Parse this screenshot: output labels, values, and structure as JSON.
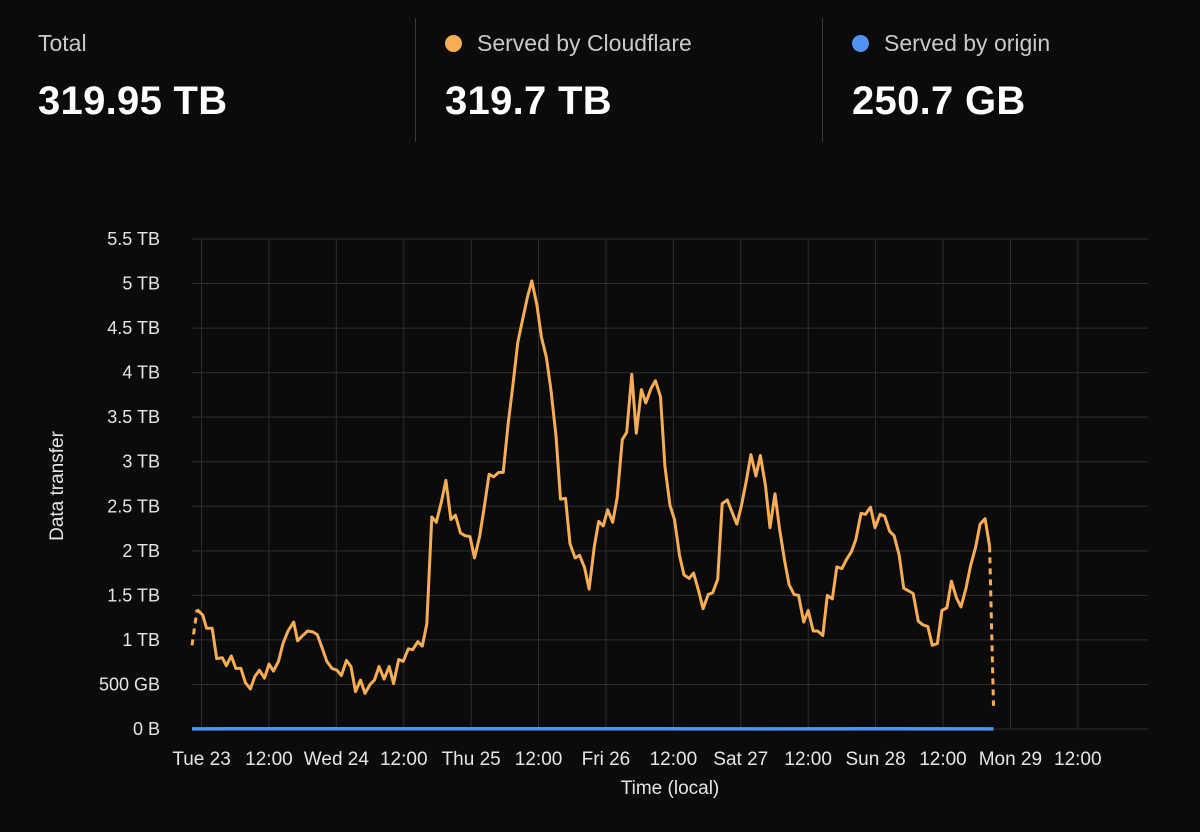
{
  "summary": {
    "total": {
      "label": "Total",
      "value": "319.95 TB"
    },
    "cloudflare": {
      "label": "Served by Cloudflare",
      "value": "319.7 TB",
      "color": "#f6ad55"
    },
    "origin": {
      "label": "Served by origin",
      "value": "250.7 GB",
      "color": "#4f93f5"
    }
  },
  "chart_data": {
    "type": "line",
    "xlabel": "Time (local)",
    "ylabel": "Data transfer",
    "ylim": [
      0,
      5.5
    ],
    "y_unit": "TB",
    "yticks": [
      {
        "value": 0,
        "label": "0 B"
      },
      {
        "value": 0.5,
        "label": "500 GB"
      },
      {
        "value": 1,
        "label": "1 TB"
      },
      {
        "value": 1.5,
        "label": "1.5 TB"
      },
      {
        "value": 2,
        "label": "2 TB"
      },
      {
        "value": 2.5,
        "label": "2.5 TB"
      },
      {
        "value": 3,
        "label": "3 TB"
      },
      {
        "value": 3.5,
        "label": "3.5 TB"
      },
      {
        "value": 4,
        "label": "4 TB"
      },
      {
        "value": 4.5,
        "label": "4.5 TB"
      },
      {
        "value": 5,
        "label": "5 TB"
      },
      {
        "value": 5.5,
        "label": "5.5 TB"
      }
    ],
    "x_hours_range": [
      -1.7,
      168.5
    ],
    "xticks": [
      {
        "hours": 0,
        "label": "Tue 23"
      },
      {
        "hours": 12,
        "label": "12:00"
      },
      {
        "hours": 24,
        "label": "Wed 24"
      },
      {
        "hours": 36,
        "label": "12:00"
      },
      {
        "hours": 48,
        "label": "Thu 25"
      },
      {
        "hours": 60,
        "label": "12:00"
      },
      {
        "hours": 72,
        "label": "Fri 26"
      },
      {
        "hours": 84,
        "label": "12:00"
      },
      {
        "hours": 96,
        "label": "Sat 27"
      },
      {
        "hours": 108,
        "label": "12:00"
      },
      {
        "hours": 120,
        "label": "Sun 28"
      },
      {
        "hours": 132,
        "label": "12:00"
      },
      {
        "hours": 144,
        "label": "Mon 29"
      },
      {
        "hours": 156,
        "label": "12:00"
      }
    ],
    "grid": true,
    "series": [
      {
        "name": "Served by Cloudflare",
        "color": "#f6ad55",
        "dashed_edges": true,
        "points": [
          [
            -1.7,
            0.94
          ],
          [
            -0.8,
            1.34
          ],
          [
            0.2,
            1.28
          ],
          [
            0.9,
            1.13
          ],
          [
            1.9,
            1.13
          ],
          [
            2.7,
            0.79
          ],
          [
            3.7,
            0.8
          ],
          [
            4.4,
            0.71
          ],
          [
            5.3,
            0.82
          ],
          [
            6.1,
            0.68
          ],
          [
            7.0,
            0.68
          ],
          [
            7.8,
            0.52
          ],
          [
            8.7,
            0.45
          ],
          [
            9.5,
            0.59
          ],
          [
            10.3,
            0.66
          ],
          [
            11.2,
            0.57
          ],
          [
            12.0,
            0.73
          ],
          [
            12.8,
            0.65
          ],
          [
            13.7,
            0.76
          ],
          [
            14.5,
            0.96
          ],
          [
            15.4,
            1.1
          ],
          [
            16.4,
            1.2
          ],
          [
            17.1,
            0.99
          ],
          [
            18.0,
            1.05
          ],
          [
            18.9,
            1.1
          ],
          [
            19.8,
            1.09
          ],
          [
            20.6,
            1.06
          ],
          [
            21.4,
            0.92
          ],
          [
            22.3,
            0.76
          ],
          [
            23.2,
            0.68
          ],
          [
            24.1,
            0.66
          ],
          [
            24.9,
            0.6
          ],
          [
            25.8,
            0.77
          ],
          [
            26.6,
            0.7
          ],
          [
            27.4,
            0.42
          ],
          [
            28.3,
            0.55
          ],
          [
            29.1,
            0.4
          ],
          [
            30.0,
            0.5
          ],
          [
            30.8,
            0.55
          ],
          [
            31.6,
            0.7
          ],
          [
            32.5,
            0.56
          ],
          [
            33.4,
            0.7
          ],
          [
            34.2,
            0.51
          ],
          [
            35.1,
            0.78
          ],
          [
            35.9,
            0.76
          ],
          [
            36.8,
            0.9
          ],
          [
            37.6,
            0.89
          ],
          [
            38.5,
            0.98
          ],
          [
            39.3,
            0.93
          ],
          [
            40.1,
            1.18
          ],
          [
            41.0,
            2.38
          ],
          [
            41.8,
            2.32
          ],
          [
            42.7,
            2.55
          ],
          [
            43.5,
            2.79
          ],
          [
            44.4,
            2.35
          ],
          [
            45.2,
            2.4
          ],
          [
            46.1,
            2.2
          ],
          [
            46.9,
            2.17
          ],
          [
            47.8,
            2.16
          ],
          [
            48.6,
            1.92
          ],
          [
            49.5,
            2.16
          ],
          [
            50.3,
            2.48
          ],
          [
            51.2,
            2.86
          ],
          [
            52.0,
            2.83
          ],
          [
            52.9,
            2.88
          ],
          [
            53.7,
            2.88
          ],
          [
            54.6,
            3.43
          ],
          [
            55.4,
            3.84
          ],
          [
            56.3,
            4.34
          ],
          [
            57.1,
            4.58
          ],
          [
            58.0,
            4.84
          ],
          [
            58.8,
            5.03
          ],
          [
            59.7,
            4.76
          ],
          [
            60.5,
            4.4
          ],
          [
            61.4,
            4.17
          ],
          [
            62.2,
            3.81
          ],
          [
            63.1,
            3.29
          ],
          [
            63.9,
            2.58
          ],
          [
            64.8,
            2.59
          ],
          [
            65.6,
            2.08
          ],
          [
            66.5,
            1.92
          ],
          [
            67.3,
            1.95
          ],
          [
            68.2,
            1.81
          ],
          [
            69.0,
            1.57
          ],
          [
            69.9,
            2.04
          ],
          [
            70.7,
            2.33
          ],
          [
            71.5,
            2.28
          ],
          [
            72.3,
            2.46
          ],
          [
            73.2,
            2.32
          ],
          [
            74.0,
            2.6
          ],
          [
            74.9,
            3.25
          ],
          [
            75.7,
            3.33
          ],
          [
            76.6,
            3.98
          ],
          [
            77.4,
            3.32
          ],
          [
            78.3,
            3.81
          ],
          [
            79.1,
            3.66
          ],
          [
            80.0,
            3.82
          ],
          [
            80.8,
            3.91
          ],
          [
            81.7,
            3.73
          ],
          [
            82.5,
            2.95
          ],
          [
            83.4,
            2.51
          ],
          [
            84.2,
            2.35
          ],
          [
            85.1,
            1.95
          ],
          [
            85.9,
            1.73
          ],
          [
            86.8,
            1.69
          ],
          [
            87.6,
            1.75
          ],
          [
            88.5,
            1.55
          ],
          [
            89.3,
            1.35
          ],
          [
            90.2,
            1.51
          ],
          [
            91.0,
            1.53
          ],
          [
            91.9,
            1.68
          ],
          [
            92.7,
            2.53
          ],
          [
            93.6,
            2.57
          ],
          [
            94.4,
            2.44
          ],
          [
            95.3,
            2.3
          ],
          [
            96.1,
            2.5
          ],
          [
            97.0,
            2.79
          ],
          [
            97.8,
            3.08
          ],
          [
            98.7,
            2.84
          ],
          [
            99.5,
            3.07
          ],
          [
            100.4,
            2.73
          ],
          [
            101.2,
            2.26
          ],
          [
            102.1,
            2.64
          ],
          [
            102.9,
            2.25
          ],
          [
            103.8,
            1.89
          ],
          [
            104.6,
            1.62
          ],
          [
            105.5,
            1.51
          ],
          [
            106.3,
            1.5
          ],
          [
            107.2,
            1.2
          ],
          [
            108.0,
            1.33
          ],
          [
            108.9,
            1.1
          ],
          [
            109.7,
            1.1
          ],
          [
            110.6,
            1.05
          ],
          [
            111.4,
            1.5
          ],
          [
            112.3,
            1.46
          ],
          [
            113.1,
            1.82
          ],
          [
            114.0,
            1.8
          ],
          [
            114.8,
            1.9
          ],
          [
            115.7,
            1.99
          ],
          [
            116.5,
            2.13
          ],
          [
            117.4,
            2.42
          ],
          [
            118.2,
            2.41
          ],
          [
            119.1,
            2.49
          ],
          [
            119.9,
            2.26
          ],
          [
            120.8,
            2.41
          ],
          [
            121.6,
            2.39
          ],
          [
            122.5,
            2.22
          ],
          [
            123.3,
            2.17
          ],
          [
            124.2,
            1.95
          ],
          [
            125.0,
            1.58
          ],
          [
            125.9,
            1.55
          ],
          [
            126.7,
            1.52
          ],
          [
            127.6,
            1.21
          ],
          [
            128.4,
            1.17
          ],
          [
            129.3,
            1.15
          ],
          [
            130.1,
            0.94
          ],
          [
            131.0,
            0.96
          ],
          [
            131.8,
            1.33
          ],
          [
            132.7,
            1.36
          ],
          [
            133.5,
            1.66
          ],
          [
            134.4,
            1.47
          ],
          [
            135.2,
            1.37
          ],
          [
            136.1,
            1.58
          ],
          [
            136.9,
            1.83
          ],
          [
            137.8,
            2.04
          ],
          [
            138.6,
            2.3
          ],
          [
            139.5,
            2.36
          ],
          [
            140.3,
            2.05
          ],
          [
            141.0,
            0.26
          ]
        ]
      },
      {
        "name": "Served by origin",
        "color": "#4f93f5",
        "points": [
          [
            -1.7,
            0.0015
          ],
          [
            5,
            0.0025
          ],
          [
            20,
            0.002
          ],
          [
            40,
            0.0018
          ],
          [
            60,
            0.0022
          ],
          [
            80,
            0.002
          ],
          [
            100,
            0.0015
          ],
          [
            120,
            0.0018
          ],
          [
            141.0,
            0.0012
          ]
        ]
      }
    ]
  }
}
